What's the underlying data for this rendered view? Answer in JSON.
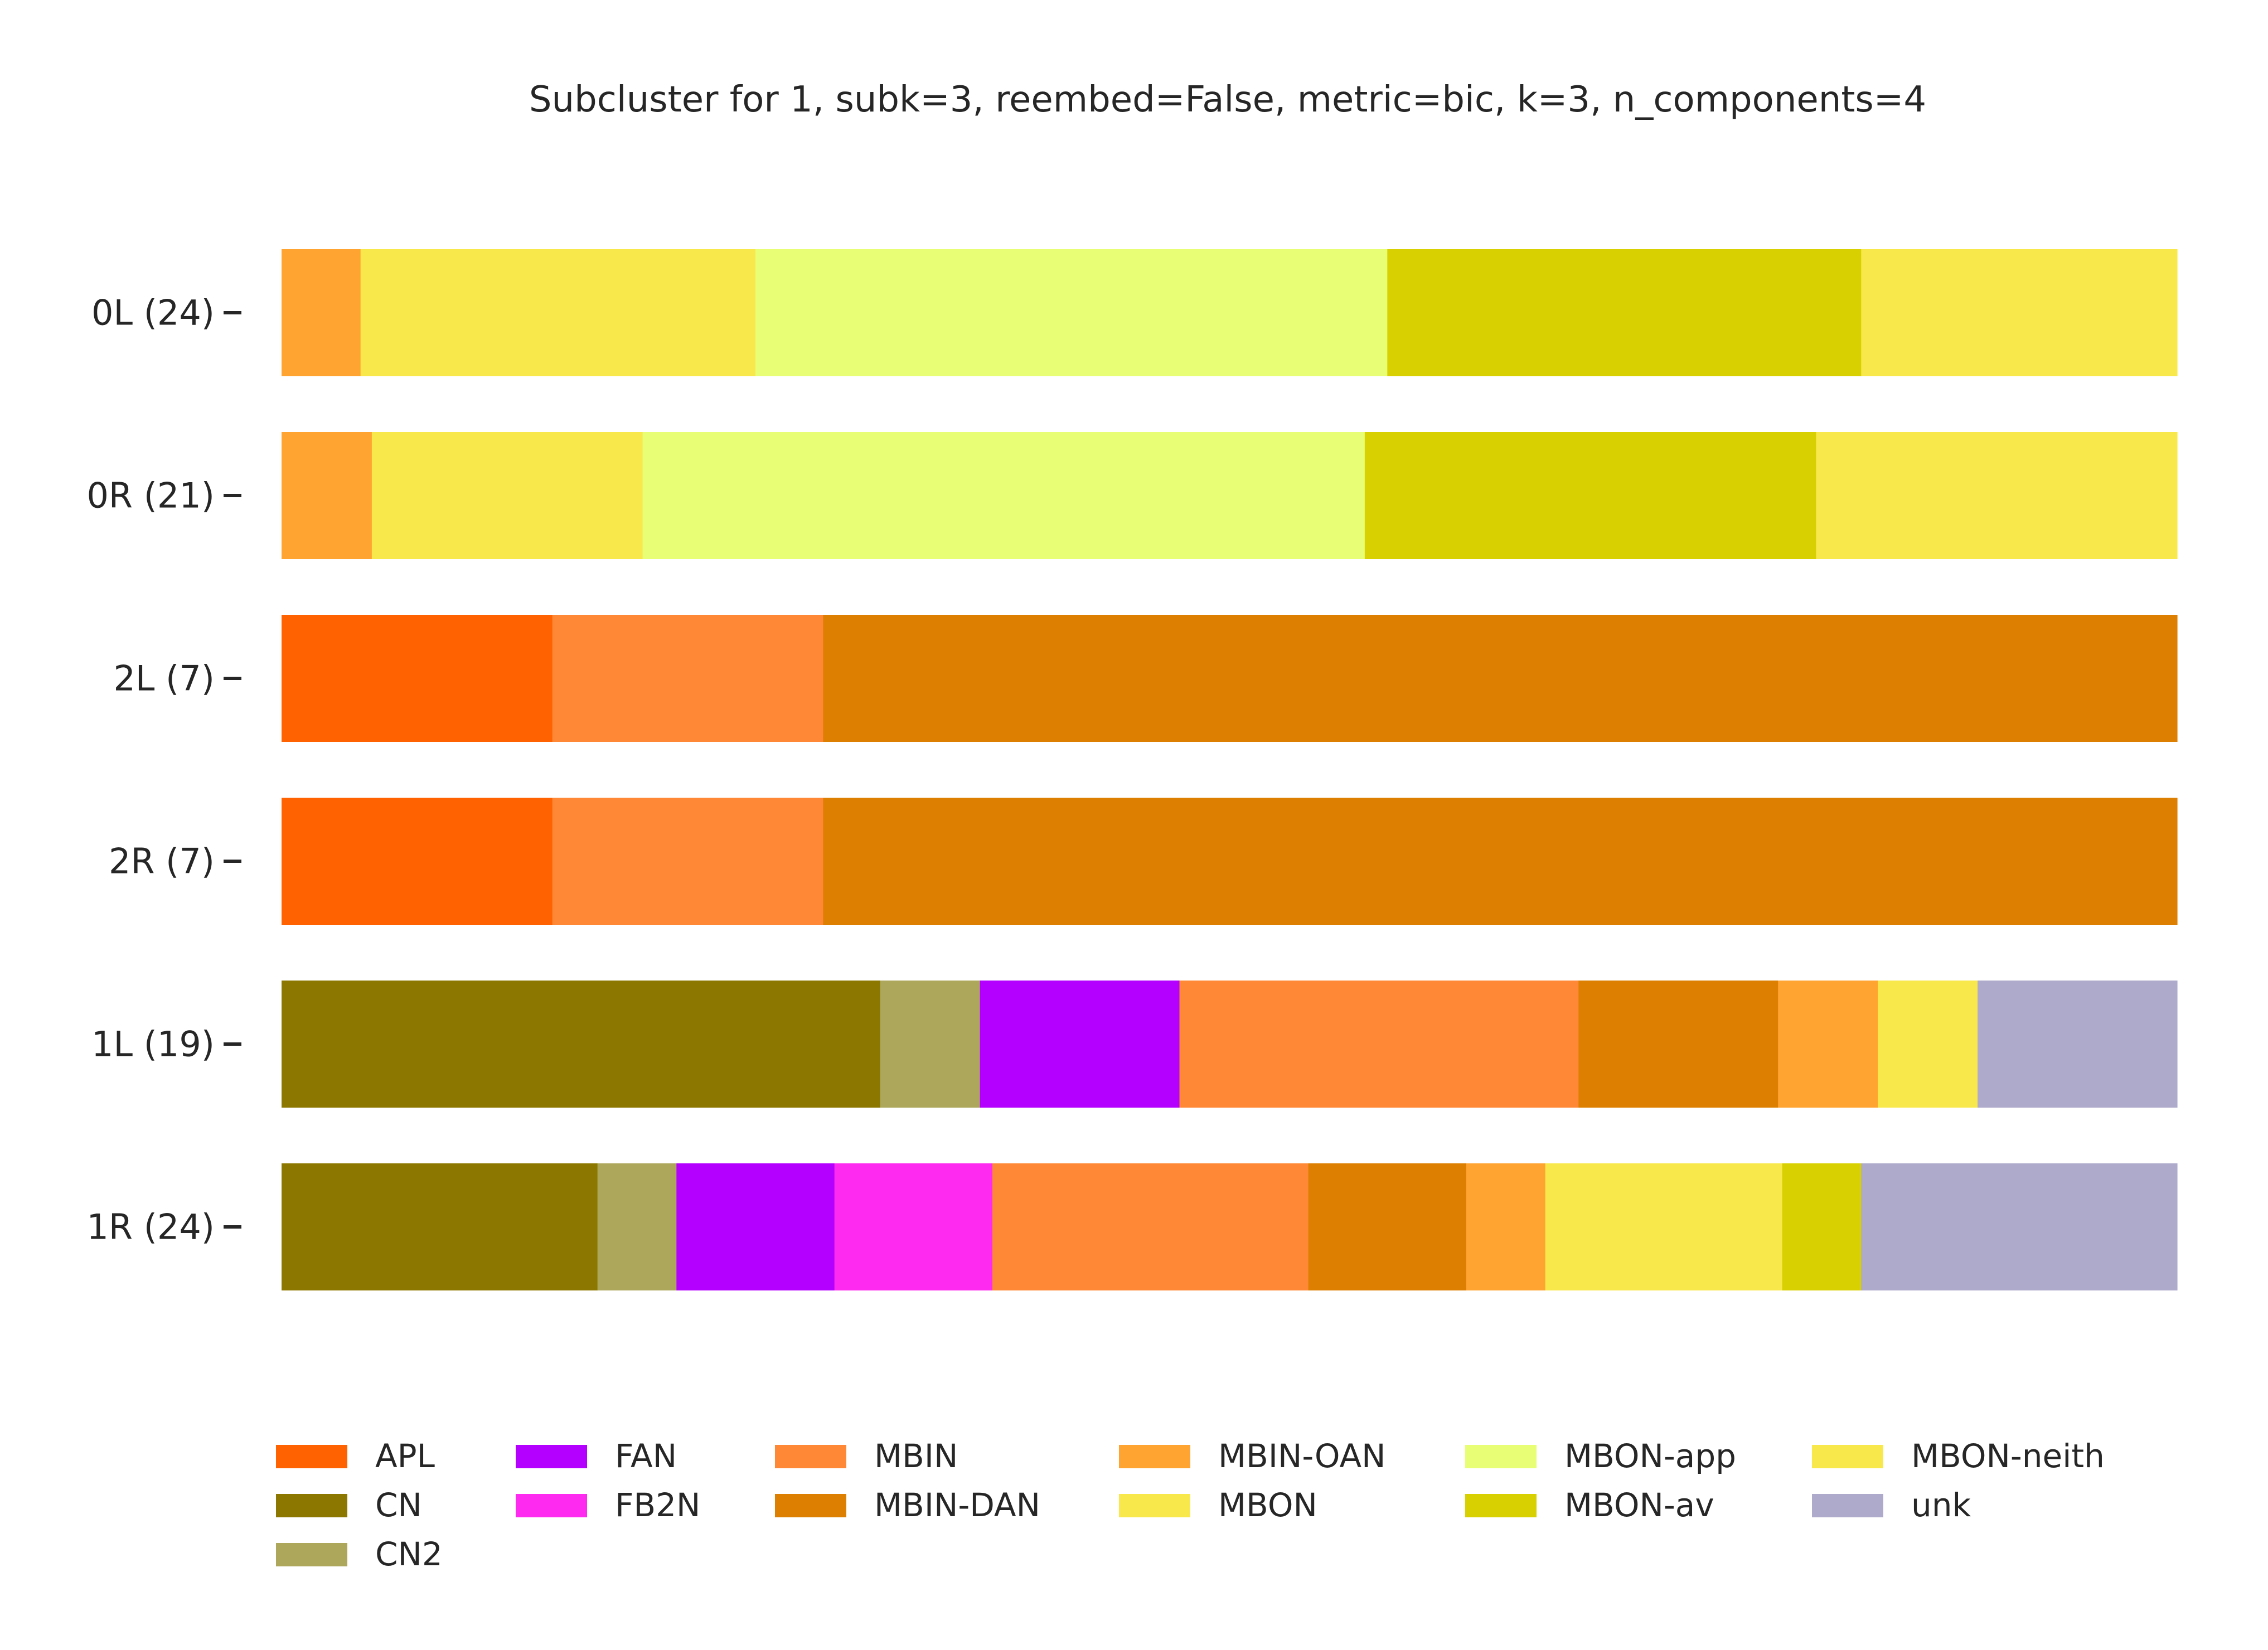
{
  "chart_data": {
    "type": "bar",
    "orientation": "horizontal",
    "stacked": true,
    "normalized": true,
    "title": "Subcluster for 1, subk=3, reembed=False, metric=bic, k=3, n_components=4",
    "xlabel": "",
    "ylabel": "",
    "xlim": [
      0,
      1
    ],
    "grid": false,
    "legend_position": "bottom",
    "categories": [
      "0L (24)",
      "0R (21)",
      "2L (7)",
      "2R (7)",
      "1L (19)",
      "1R (24)"
    ],
    "classes": [
      {
        "name": "APL",
        "color": "#ff6200"
      },
      {
        "name": "CN",
        "color": "#8c7800"
      },
      {
        "name": "CN2",
        "color": "#aca75b"
      },
      {
        "name": "FAN",
        "color": "#b300ff"
      },
      {
        "name": "FB2N",
        "color": "#ff2aef"
      },
      {
        "name": "MBIN",
        "color": "#ff8836"
      },
      {
        "name": "MBIN-DAN",
        "color": "#dd7f00"
      },
      {
        "name": "MBIN-OAN",
        "color": "#ffa431"
      },
      {
        "name": "MBON",
        "color": "#f8e84c"
      },
      {
        "name": "MBON-app",
        "color": "#e8ff75"
      },
      {
        "name": "MBON-av",
        "color": "#d8d000"
      },
      {
        "name": "MBON-neith",
        "color": "#f8e84c"
      },
      {
        "name": "unk",
        "color": "#aeaacb"
      }
    ],
    "bars": [
      {
        "label": "0L (24)",
        "segments": [
          {
            "class": "MBIN-OAN",
            "value": 1
          },
          {
            "class": "MBON",
            "value": 5
          },
          {
            "class": "MBON-app",
            "value": 8
          },
          {
            "class": "MBON-av",
            "value": 6
          },
          {
            "class": "MBON-neith",
            "value": 4
          }
        ]
      },
      {
        "label": "0R (21)",
        "segments": [
          {
            "class": "MBIN-OAN",
            "value": 1
          },
          {
            "class": "MBON",
            "value": 3
          },
          {
            "class": "MBON-app",
            "value": 8
          },
          {
            "class": "MBON-av",
            "value": 5
          },
          {
            "class": "MBON-neith",
            "value": 4
          }
        ]
      },
      {
        "label": "2L (7)",
        "segments": [
          {
            "class": "APL",
            "value": 1
          },
          {
            "class": "MBIN",
            "value": 1
          },
          {
            "class": "MBIN-DAN",
            "value": 5
          }
        ]
      },
      {
        "label": "2R (7)",
        "segments": [
          {
            "class": "APL",
            "value": 1
          },
          {
            "class": "MBIN",
            "value": 1
          },
          {
            "class": "MBIN-DAN",
            "value": 5
          }
        ]
      },
      {
        "label": "1L (19)",
        "segments": [
          {
            "class": "CN",
            "value": 6
          },
          {
            "class": "CN2",
            "value": 1
          },
          {
            "class": "FAN",
            "value": 2
          },
          {
            "class": "MBIN",
            "value": 4
          },
          {
            "class": "MBIN-DAN",
            "value": 2
          },
          {
            "class": "MBIN-OAN",
            "value": 1
          },
          {
            "class": "MBON",
            "value": 1
          },
          {
            "class": "unk",
            "value": 2
          }
        ]
      },
      {
        "label": "1R (24)",
        "segments": [
          {
            "class": "CN",
            "value": 4
          },
          {
            "class": "CN2",
            "value": 1
          },
          {
            "class": "FAN",
            "value": 2
          },
          {
            "class": "FB2N",
            "value": 2
          },
          {
            "class": "MBIN",
            "value": 4
          },
          {
            "class": "MBIN-DAN",
            "value": 2
          },
          {
            "class": "MBIN-OAN",
            "value": 1
          },
          {
            "class": "MBON",
            "value": 3
          },
          {
            "class": "MBON-av",
            "value": 1
          },
          {
            "class": "unk",
            "value": 4
          }
        ]
      }
    ],
    "legend": {
      "columns": [
        [
          "APL",
          "CN",
          "CN2"
        ],
        [
          "FAN",
          "FB2N"
        ],
        [
          "MBIN",
          "MBIN-DAN"
        ],
        [
          "MBIN-OAN",
          "MBON"
        ],
        [
          "MBON-app",
          "MBON-av"
        ],
        [
          "MBON-neith",
          "unk"
        ]
      ]
    }
  }
}
